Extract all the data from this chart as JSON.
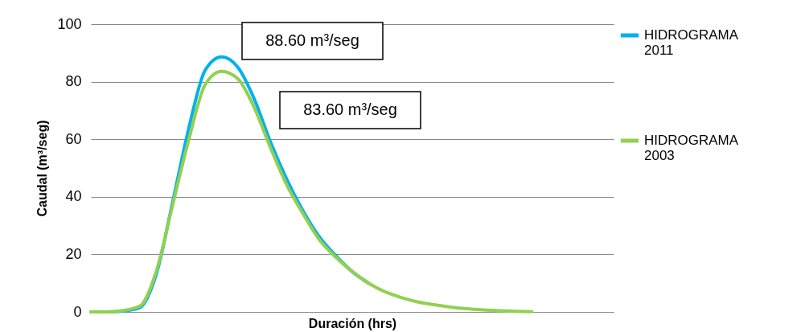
{
  "chart_data": {
    "type": "line",
    "xlabel": "Duración (hrs)",
    "ylabel": "Caudal (m³/seg)",
    "categories": [
      null,
      null,
      null,
      null,
      null,
      null,
      null,
      null,
      null,
      null,
      null,
      null,
      null,
      null,
      null,
      null,
      null,
      null,
      null,
      null,
      null,
      null,
      null,
      null,
      null,
      null,
      null,
      null,
      null,
      null,
      null,
      null,
      null
    ],
    "series": [
      {
        "name": "HIDROGRAMA 2011",
        "color": "#00b0f0",
        "values": [
          0,
          0,
          0.3,
          1.5,
          13,
          38,
          64,
          84,
          88.6,
          85,
          74,
          59,
          46,
          35,
          26,
          19.5,
          14,
          10,
          null,
          null,
          null,
          null,
          null,
          null,
          null,
          null,
          null,
          null,
          null,
          null,
          null,
          null,
          null
        ]
      },
      {
        "name": "HIDROGRAMA 2003",
        "color": "#92d050",
        "values": [
          0,
          0,
          0.5,
          2,
          14,
          37,
          60,
          79,
          83.6,
          81,
          71,
          57,
          44,
          34,
          25,
          19,
          14,
          10,
          7,
          5,
          3.5,
          2.5,
          1.7,
          1.1,
          0.7,
          0.4,
          0.2,
          0.1,
          null,
          null,
          null,
          null,
          null
        ]
      }
    ],
    "ylim": [
      0,
      100
    ],
    "yticks": [
      0,
      20,
      40,
      60,
      80,
      100
    ],
    "grid": "y",
    "legend": "right",
    "marker": "none",
    "line_style": "solid",
    "annotations": [
      "88.60 m³/seg",
      "83.60 m³/seg"
    ]
  }
}
